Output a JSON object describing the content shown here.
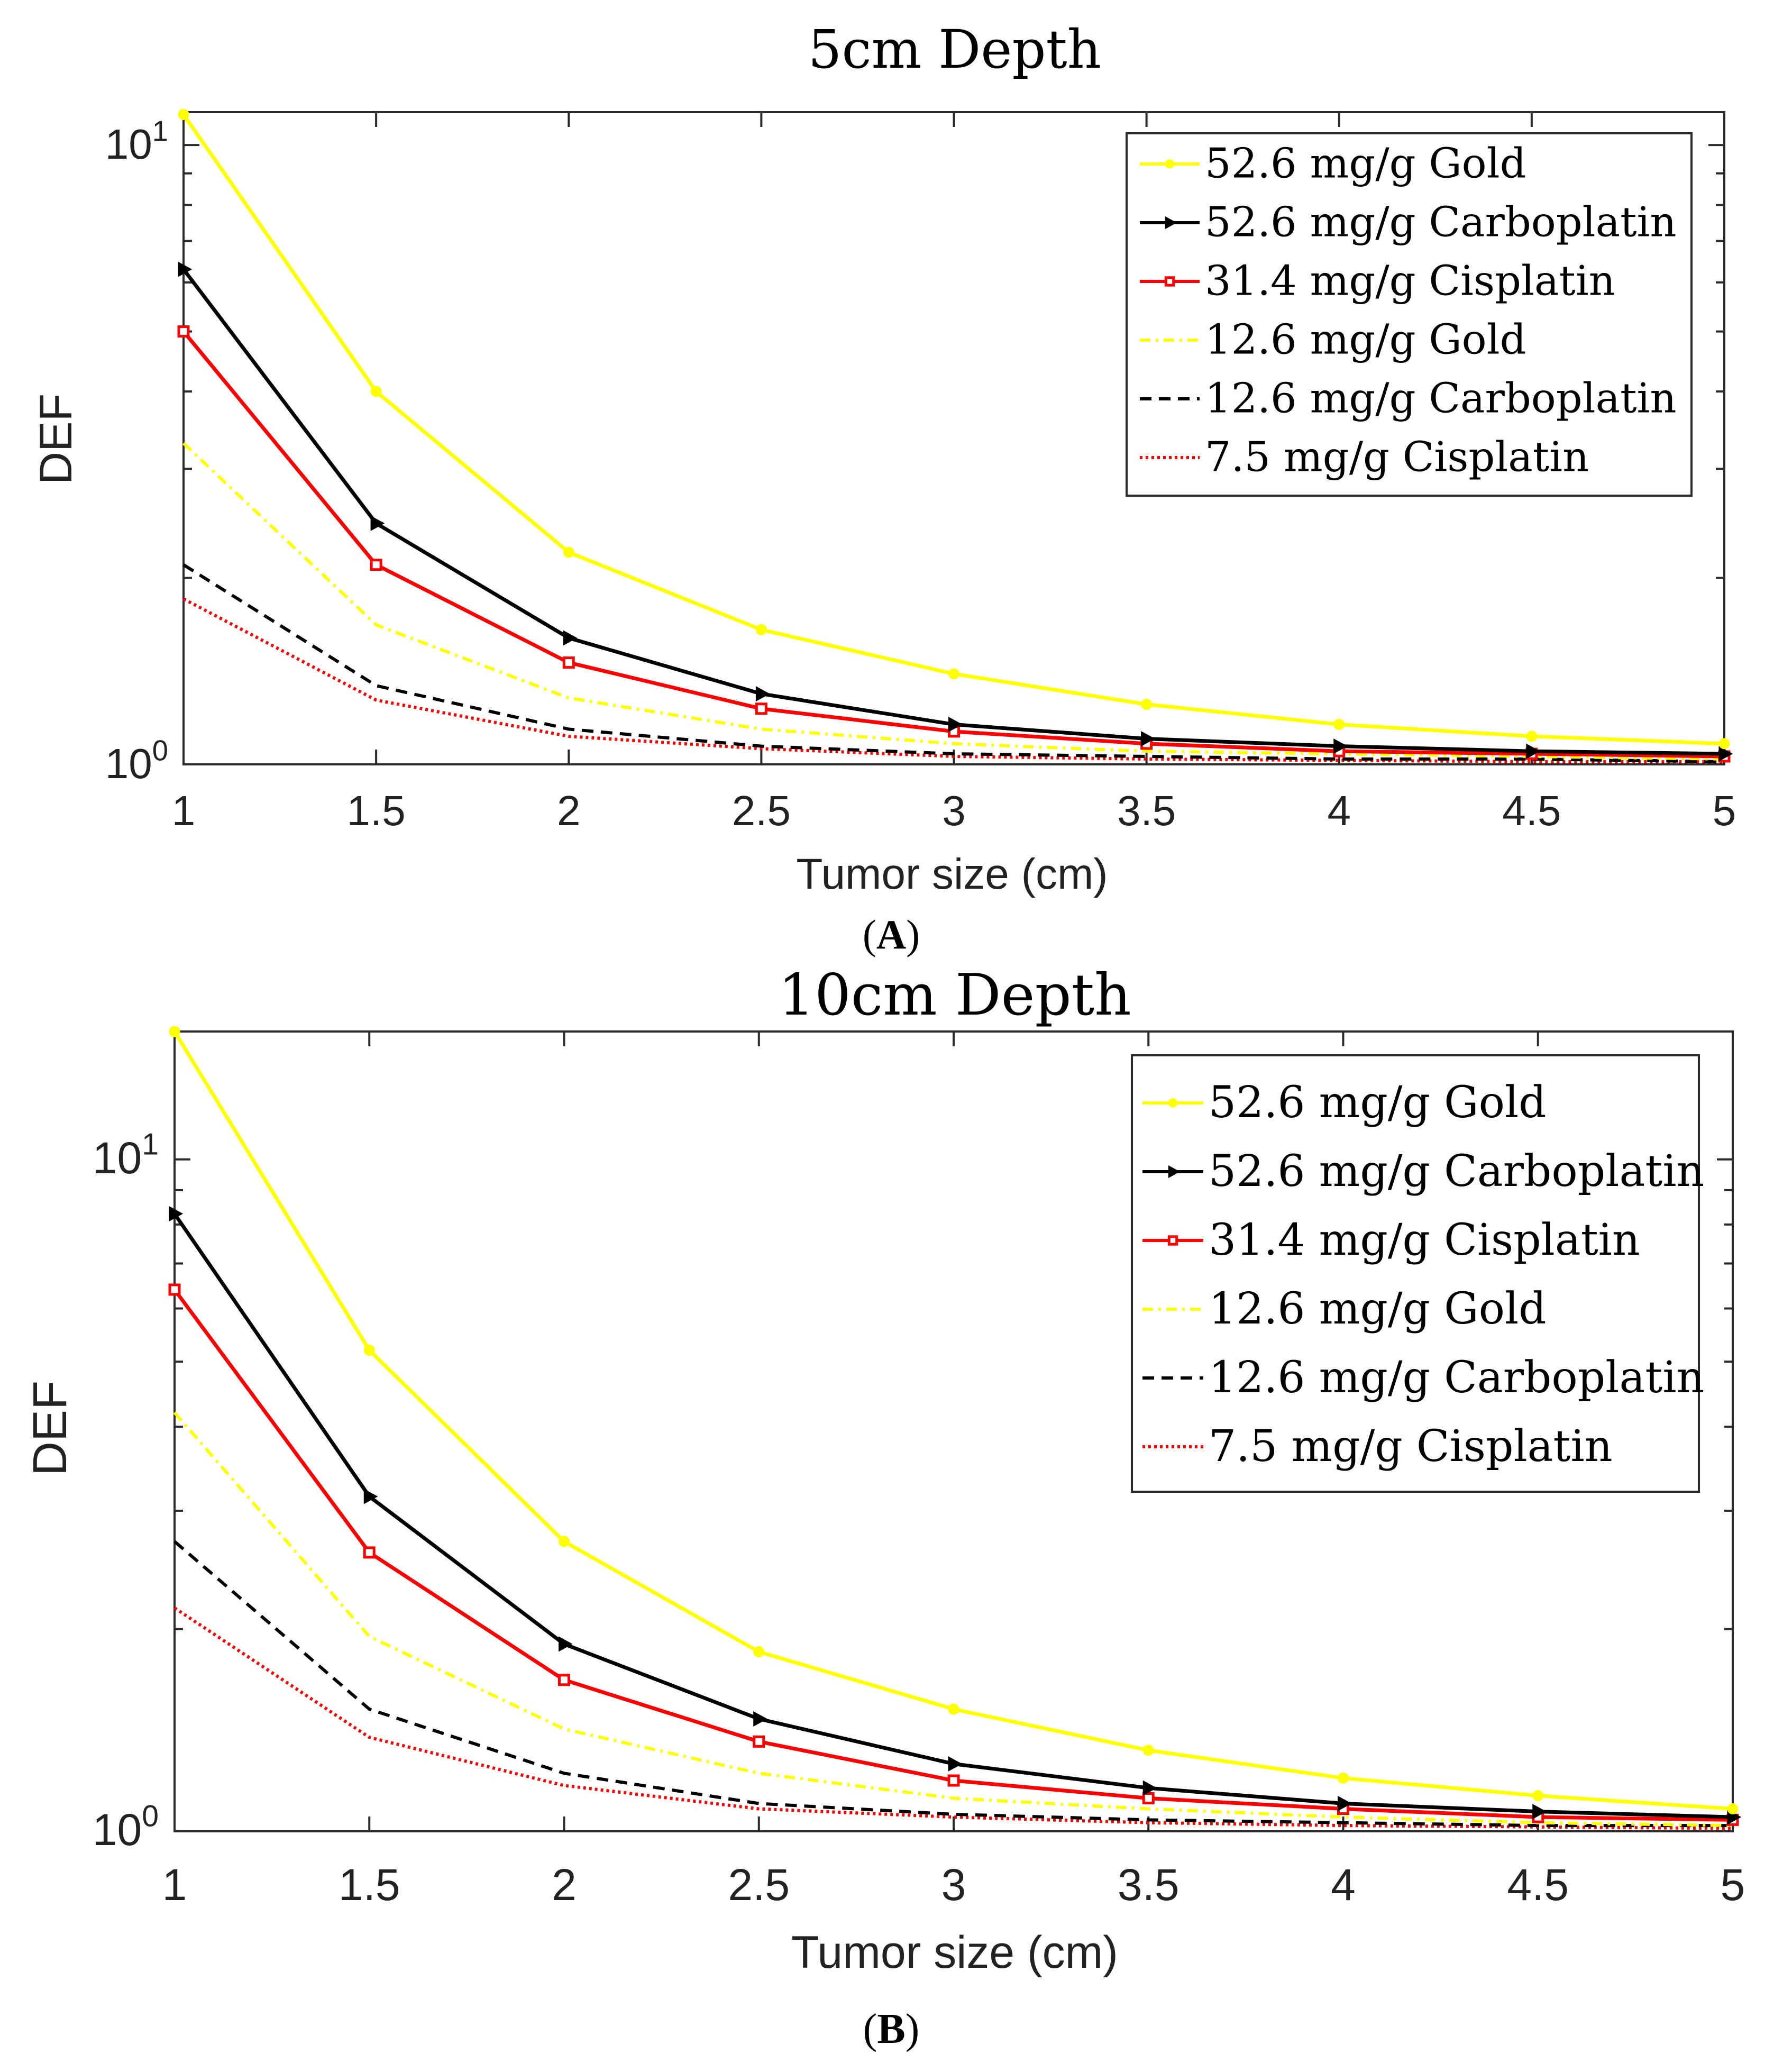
{
  "figure": {
    "panel_labels": [
      {
        "open": "(",
        "letter": "A",
        "close": ")"
      },
      {
        "open": "(",
        "letter": "B",
        "close": ")"
      }
    ]
  },
  "colors": {
    "gold": "#ffff00",
    "carboplatin": "#000000",
    "cisplatin": "#ff0000",
    "axis": "#2b2b2b",
    "background": "#ffffff"
  },
  "chart_data": [
    {
      "type": "line",
      "title": "5cm Depth",
      "xlabel": "Tumor size (cm)",
      "ylabel": "DEF",
      "yscale": "log",
      "xlim": [
        1,
        5
      ],
      "ylim": [
        1,
        11.3
      ],
      "x": [
        1,
        1.5,
        2,
        2.5,
        3,
        3.5,
        4,
        4.5,
        5
      ],
      "xticks": [
        "1",
        "1.5",
        "2",
        "2.5",
        "3",
        "3.5",
        "4",
        "4.5",
        "5"
      ],
      "yticks": [
        {
          "base": "10",
          "exp": "0",
          "value": 1
        },
        {
          "base": "10",
          "exp": "1",
          "value": 10
        }
      ],
      "legend_position": "top-right",
      "series": [
        {
          "name": "52.6 mg/g Gold",
          "color": "#ffff00",
          "style": "solid",
          "marker": "dot",
          "values": [
            11.2,
            4.0,
            2.2,
            1.65,
            1.4,
            1.25,
            1.16,
            1.11,
            1.08
          ]
        },
        {
          "name": "52.6 mg/g Carboplatin",
          "color": "#000000",
          "style": "solid",
          "marker": "triangle",
          "values": [
            6.3,
            2.45,
            1.6,
            1.3,
            1.16,
            1.1,
            1.07,
            1.05,
            1.04
          ]
        },
        {
          "name": "31.4 mg/g Cisplatin",
          "color": "#ff0000",
          "style": "solid",
          "marker": "square",
          "values": [
            5.0,
            2.1,
            1.46,
            1.23,
            1.13,
            1.08,
            1.05,
            1.04,
            1.03
          ]
        },
        {
          "name": "12.6 mg/g Gold",
          "color": "#ffff00",
          "style": "dashdot",
          "marker": "none",
          "values": [
            3.3,
            1.68,
            1.28,
            1.14,
            1.08,
            1.05,
            1.04,
            1.03,
            1.02
          ]
        },
        {
          "name": "12.6 mg/g Carboplatin",
          "color": "#000000",
          "style": "dashed",
          "marker": "none",
          "values": [
            2.1,
            1.34,
            1.14,
            1.07,
            1.04,
            1.03,
            1.02,
            1.02,
            1.01
          ]
        },
        {
          "name": "7.5 mg/g Cisplatin",
          "color": "#ff0000",
          "style": "dotted",
          "marker": "none",
          "values": [
            1.85,
            1.27,
            1.11,
            1.06,
            1.03,
            1.02,
            1.015,
            1.01,
            1.01
          ]
        }
      ]
    },
    {
      "type": "line",
      "title": "10cm Depth",
      "xlabel": "Tumor size (cm)",
      "ylabel": "DEF",
      "yscale": "log",
      "xlim": [
        1,
        5
      ],
      "ylim": [
        1,
        15.5
      ],
      "x": [
        1,
        1.5,
        2,
        2.5,
        3,
        3.5,
        4,
        4.5,
        5
      ],
      "xticks": [
        "1",
        "1.5",
        "2",
        "2.5",
        "3",
        "3.5",
        "4",
        "4.5",
        "5"
      ],
      "yticks": [
        {
          "base": "10",
          "exp": "0",
          "value": 1
        },
        {
          "base": "10",
          "exp": "1",
          "value": 10
        }
      ],
      "legend_position": "top-right",
      "series": [
        {
          "name": "52.6 mg/g Gold",
          "color": "#ffff00",
          "style": "solid",
          "marker": "dot",
          "values": [
            15.5,
            5.2,
            2.7,
            1.85,
            1.52,
            1.32,
            1.2,
            1.13,
            1.08
          ]
        },
        {
          "name": "52.6 mg/g Carboplatin",
          "color": "#000000",
          "style": "solid",
          "marker": "triangle",
          "values": [
            8.3,
            3.15,
            1.9,
            1.47,
            1.26,
            1.16,
            1.1,
            1.07,
            1.05
          ]
        },
        {
          "name": "31.4 mg/g Cisplatin",
          "color": "#ff0000",
          "style": "solid",
          "marker": "square",
          "values": [
            6.4,
            2.6,
            1.68,
            1.36,
            1.19,
            1.12,
            1.08,
            1.05,
            1.04
          ]
        },
        {
          "name": "12.6 mg/g Gold",
          "color": "#ffff00",
          "style": "dashdot",
          "marker": "none",
          "values": [
            4.2,
            1.95,
            1.42,
            1.22,
            1.12,
            1.08,
            1.05,
            1.03,
            1.02
          ]
        },
        {
          "name": "12.6 mg/g Carboplatin",
          "color": "#000000",
          "style": "dashed",
          "marker": "none",
          "values": [
            2.7,
            1.52,
            1.22,
            1.1,
            1.06,
            1.04,
            1.03,
            1.02,
            1.02
          ]
        },
        {
          "name": "7.5 mg/g Cisplatin",
          "color": "#ff0000",
          "style": "dotted",
          "marker": "none",
          "values": [
            2.15,
            1.38,
            1.17,
            1.08,
            1.05,
            1.03,
            1.02,
            1.015,
            1.01
          ]
        }
      ]
    }
  ]
}
